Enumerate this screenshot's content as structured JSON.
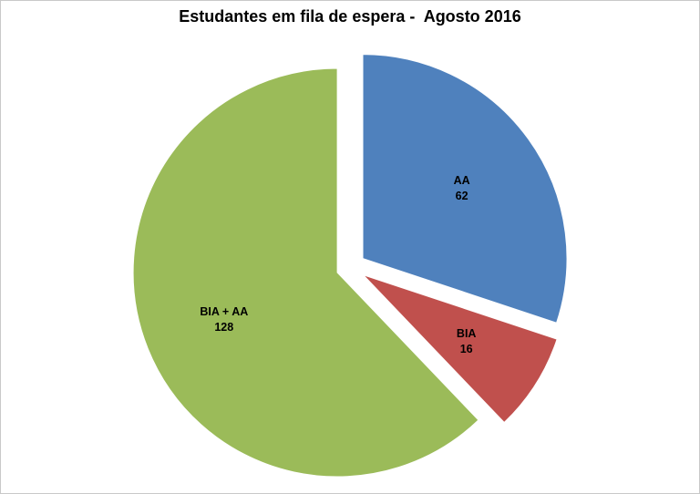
{
  "chart_data": {
    "type": "pie",
    "title": "Estudantes em fila de espera -  Agosto 2016",
    "slices": [
      {
        "label": "AA",
        "value": 62,
        "color": "#4f81bd"
      },
      {
        "label": "BIA",
        "value": 16,
        "color": "#c0504d"
      },
      {
        "label": "BIA + AA",
        "value": 128,
        "color": "#9bbb59"
      }
    ],
    "start_angle_deg": 0,
    "direction": "clockwise",
    "exploded": true,
    "legend_position": "none",
    "label_style": "inside: category name above value",
    "background_color": "#ffffff",
    "frame_border_color": "#c9c9c9",
    "title_color": "#000000"
  }
}
